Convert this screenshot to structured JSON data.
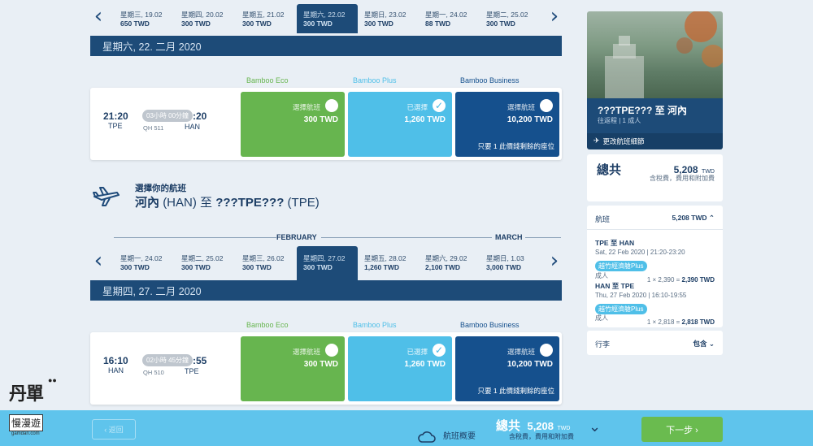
{
  "outbound_dates": [
    {
      "day": "星期三, 19.02",
      "price": "650 TWD"
    },
    {
      "day": "星期四, 20.02",
      "price": "300 TWD"
    },
    {
      "day": "星期五, 21.02",
      "price": "300 TWD"
    },
    {
      "day": "星期六, 22.02",
      "price": "300 TWD",
      "selected": true
    },
    {
      "day": "星期日, 23.02",
      "price": "300 TWD"
    },
    {
      "day": "星期一, 24.02",
      "price": "88 TWD"
    },
    {
      "day": "星期二, 25.02",
      "price": "300 TWD"
    }
  ],
  "outbound_bar": "星期六, 22. 二月 2020",
  "fare_headers": {
    "eco": "Bamboo Eco",
    "plus": "Bamboo Plus",
    "business": "Bamboo Business"
  },
  "outbound_flight": {
    "dep_time": "21:20",
    "dep_code": "TPE",
    "duration": "03小時 00分鐘",
    "arr_time": ":20",
    "arr_code": "HAN",
    "flight_no": "QH 511",
    "eco": {
      "status": "選擇航班",
      "price": "300 TWD"
    },
    "plus": {
      "status": "已選擇",
      "price": "1,260 TWD"
    },
    "business": {
      "status": "選擇航班",
      "price": "10,200 TWD",
      "note": "只要 1 此價錢剩餘的座位"
    }
  },
  "return_heading": {
    "sub": "選擇你的航班",
    "from_city": "河內",
    "from_code": "(HAN)",
    "to_word": "至",
    "to_city": "???TPE???",
    "to_code": "(TPE)"
  },
  "months": {
    "feb": "FEBRUARY",
    "mar": "MARCH"
  },
  "return_dates": [
    {
      "day": "星期一, 24.02",
      "price": "300 TWD"
    },
    {
      "day": "星期二, 25.02",
      "price": "300 TWD"
    },
    {
      "day": "星期三, 26.02",
      "price": "300 TWD"
    },
    {
      "day": "星期四, 27.02",
      "price": "300 TWD",
      "selected": true
    },
    {
      "day": "星期五, 28.02",
      "price": "1,260 TWD"
    },
    {
      "day": "星期六, 29.02",
      "price": "2,100 TWD"
    },
    {
      "day": "星期日, 1.03",
      "price": "3,000 TWD"
    }
  ],
  "return_bar": "星期四, 27. 二月 2020",
  "return_flight": {
    "dep_time": "16:10",
    "dep_code": "HAN",
    "duration": "02小時 45分鐘",
    "arr_time": ":55",
    "arr_code": "TPE",
    "flight_no": "QH 510",
    "eco": {
      "status": "選擇航班",
      "price": "300 TWD"
    },
    "plus": {
      "status": "已選擇",
      "price": "1,260 TWD"
    },
    "business": {
      "status": "選擇航班",
      "price": "10,200 TWD",
      "note": "只要 1 此價錢剩餘的座位"
    }
  },
  "sidebar": {
    "route": "???TPE??? 至 河內",
    "trip": "往返程 | 1 成人",
    "edit": "更改航班細節",
    "total_label": "總共",
    "total_value": "5,208",
    "total_cur": "TWD",
    "total_note": "含稅費，費用和附加費",
    "flights_label": "航班",
    "flights_value": "5,208 TWD",
    "leg1": {
      "route": "TPE 至 HAN",
      "date": "Sat, 22 Feb 2020 | 21:20-23:20",
      "fare": "越竹經濟艙Plus",
      "pax": "成人",
      "calc": "1 × 2,390 = ",
      "amt": "2,390 TWD"
    },
    "leg2": {
      "route": "HAN 至 TPE",
      "date": "Thu, 27 Feb 2020 | 16:10-19:55",
      "fare": "越竹經濟艙Plus",
      "pax": "成人",
      "calc": "1 × 2,818 = ",
      "amt": "2,818 TWD"
    },
    "bag_label": "行李",
    "bag_value": "包含"
  },
  "footer": {
    "back": "‹ 返回",
    "summary": "航班概要",
    "total_label": "總共",
    "total_value": "5,208",
    "total_cur": "TWD",
    "total_note": "含稅費，費用和附加費",
    "next": "下一步 ›"
  },
  "logo": {
    "line1": "丹單",
    "line2": "慢漫遊",
    "line3": "gamdan.com"
  },
  "colors": {
    "eco": "#67b54f",
    "plus": "#4fbfe8",
    "business": "#15508d",
    "bar": "#1d4b78"
  }
}
